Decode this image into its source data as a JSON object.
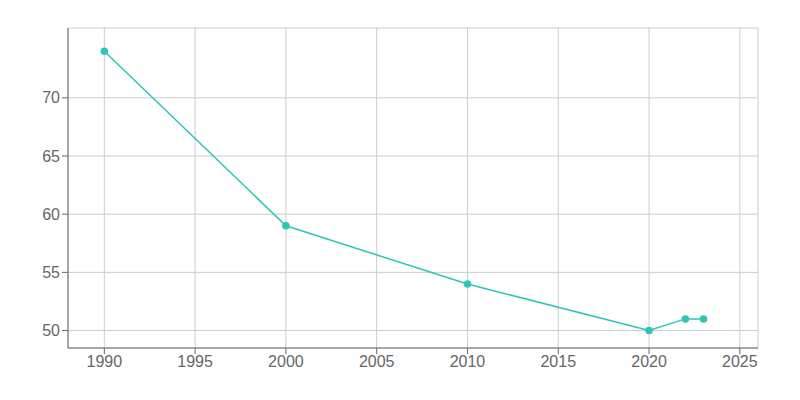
{
  "chart_data": {
    "type": "line",
    "x": [
      1990,
      2000,
      2010,
      2020,
      2022,
      2023
    ],
    "values": [
      74,
      59,
      54,
      50,
      51,
      51
    ],
    "color": "#2ec4b6",
    "marker": "circle",
    "xlim": [
      1988,
      2026
    ],
    "xticks": [
      1990,
      1995,
      2000,
      2005,
      2010,
      2015,
      2020,
      2025
    ],
    "ylim": [
      48.5,
      76
    ],
    "yticks": [
      50,
      55,
      60,
      65,
      70
    ],
    "grid": true
  }
}
